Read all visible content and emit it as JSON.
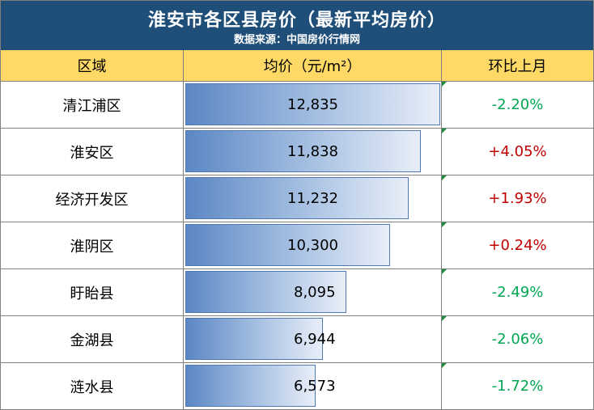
{
  "header": {
    "title": "淮安市各区县房价（最新平均房价）",
    "subtitle": "数据来源：中国房价行情网"
  },
  "columns": {
    "region": "区域",
    "price": "均价（元/m²）",
    "mom": "环比上月"
  },
  "colors": {
    "title_bg": "#1f4e79",
    "header_bg": "#ffd966",
    "increase": "#c00000",
    "decrease": "#00a651",
    "bar_start": "#5b87c4",
    "bar_end": "#e8eef8"
  },
  "chart_data": {
    "type": "table",
    "title": "淮安市各区县房价（最新平均房价）",
    "subtitle": "数据来源：中国房价行情网",
    "columns": [
      "区域",
      "均价（元/m²）",
      "环比上月"
    ],
    "bar_column": "均价（元/m²）",
    "rows": [
      {
        "region": "清江浦区",
        "price": 12835,
        "price_label": "12,835",
        "mom": "-2.20%",
        "direction": "down"
      },
      {
        "region": "淮安区",
        "price": 11838,
        "price_label": "11,838",
        "mom": "+4.05%",
        "direction": "up"
      },
      {
        "region": "经济开发区",
        "price": 11232,
        "price_label": "11,232",
        "mom": "+1.93%",
        "direction": "up"
      },
      {
        "region": "淮阴区",
        "price": 10300,
        "price_label": "10,300",
        "mom": "+0.24%",
        "direction": "up"
      },
      {
        "region": "盱眙县",
        "price": 8095,
        "price_label": "8,095",
        "mom": "-2.49%",
        "direction": "down"
      },
      {
        "region": "金湖县",
        "price": 6944,
        "price_label": "6,944",
        "mom": "-2.06%",
        "direction": "down"
      },
      {
        "region": "涟水县",
        "price": 6573,
        "price_label": "6,573",
        "mom": "-1.72%",
        "direction": "down"
      }
    ]
  }
}
